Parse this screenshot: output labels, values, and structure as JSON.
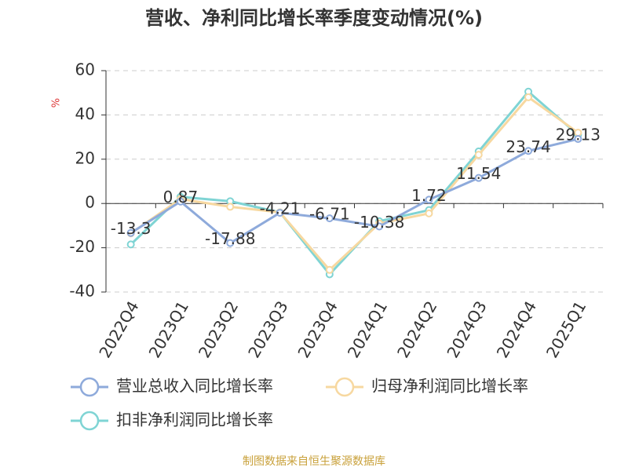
{
  "chart_data": {
    "type": "line",
    "title": "营收、净利同比增长率季度变动情况(%)",
    "y_label": "%",
    "source": "制图数据来自恒生聚源数据库",
    "categories": [
      "2022Q4",
      "2023Q1",
      "2023Q2",
      "2023Q3",
      "2023Q4",
      "2024Q1",
      "2024Q2",
      "2024Q3",
      "2024Q4",
      "2025Q1"
    ],
    "series": [
      {
        "name": "营业总收入同比增长率",
        "color": "#8eaadb",
        "values": [
          -13.3,
          0.87,
          -17.88,
          -4.21,
          -6.71,
          -10.38,
          1.72,
          11.54,
          23.74,
          29.13
        ],
        "show_labels": true
      },
      {
        "name": "归母净利润同比增长率",
        "color": "#f7d8a0",
        "values": [
          -13.5,
          2,
          -1.5,
          -4,
          -30,
          -9,
          -4.5,
          22,
          48,
          32
        ]
      },
      {
        "name": "扣非净利润同比增长率",
        "color": "#7fd4d4",
        "values": [
          -18.5,
          3,
          1,
          -4,
          -32,
          -8,
          -3,
          23.5,
          50.5,
          31
        ]
      }
    ],
    "ylim": [
      -40,
      60
    ],
    "yticks": [
      -40,
      -20,
      0,
      20,
      40,
      60
    ],
    "grid": true
  }
}
